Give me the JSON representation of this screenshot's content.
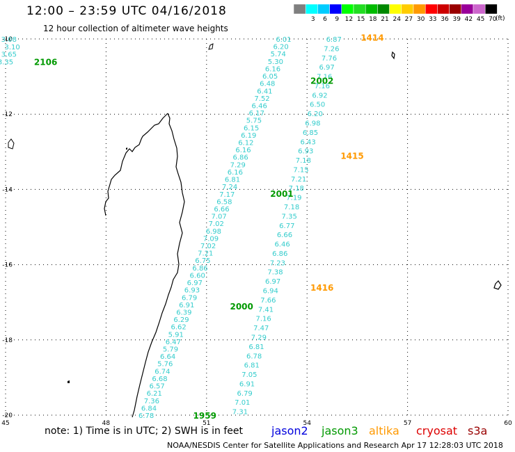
{
  "header": {
    "title": "12:00 – 23:59 UTC 04/16/2018",
    "subtitle": "12 hour collection of altimeter wave heights"
  },
  "color_scale": {
    "units": "(ft)",
    "bins": [
      {
        "label": "",
        "color": "#7f7f7f"
      },
      {
        "label": "3",
        "color": "#00ffff"
      },
      {
        "label": "6",
        "color": "#00ccff"
      },
      {
        "label": "9",
        "color": "#0000ff"
      },
      {
        "label": "12",
        "color": "#00ff00"
      },
      {
        "label": "15",
        "color": "#22dd22"
      },
      {
        "label": "18",
        "color": "#00bb00"
      },
      {
        "label": "21",
        "color": "#008800"
      },
      {
        "label": "24",
        "color": "#ffff00"
      },
      {
        "label": "27",
        "color": "#ffcc00"
      },
      {
        "label": "30",
        "color": "#ff9900"
      },
      {
        "label": "33",
        "color": "#ff0000"
      },
      {
        "label": "36",
        "color": "#cc0000"
      },
      {
        "label": "39",
        "color": "#990000"
      },
      {
        "label": "42",
        "color": "#990099"
      },
      {
        "label": "45",
        "color": "#cc66cc"
      },
      {
        "label": "70",
        "color": "#000000"
      }
    ]
  },
  "map": {
    "lon_range": [
      45,
      60
    ],
    "lat_range": [
      -20,
      -10
    ],
    "lon_labels": [
      "45",
      "48",
      "51",
      "54",
      "57",
      "60"
    ],
    "lat_labels": [
      "-10",
      "-12",
      "-14",
      "-16",
      "-18",
      "-20"
    ]
  },
  "tracks": [
    {
      "id": "t2106",
      "color": "#33cccc",
      "values": [
        "3.08",
        "3.10",
        "3.65",
        "3.35"
      ],
      "points": [
        [
          45.1,
          -10.0
        ],
        [
          45.2,
          -10.2
        ],
        [
          45.1,
          -10.4
        ],
        [
          45.0,
          -10.6
        ]
      ]
    },
    {
      "id": "t2002",
      "color": "#33cccc",
      "values": [
        "6.01",
        "6.20",
        "5.74",
        "5.30",
        "6.16",
        "6.05",
        "6.48",
        "6.41",
        "7.52",
        "6.46",
        "6.17",
        "5.75",
        "6.15",
        "6.19",
        "6.12",
        "6.16",
        "6.86",
        "7.29",
        "6.16",
        "6.81",
        "7.24",
        "7.17",
        "6.58",
        "6.66",
        "7.07",
        "7.02",
        "6.98",
        "7.09",
        "7.02",
        "7.21",
        "6.75",
        "6.86",
        "6.60",
        "6.97",
        "6.93",
        "6.79",
        "6.91",
        "6.39",
        "6.29",
        "6.62",
        "5.91",
        "6.47",
        "5.79",
        "6.64",
        "5.76",
        "6.74",
        "6.68",
        "6.57",
        "6.21",
        "7.36",
        "6.84",
        "6.78"
      ],
      "points": [
        [
          53.3,
          -10.0
        ],
        [
          49.2,
          -20.0
        ]
      ]
    },
    {
      "id": "t1415",
      "color": "#33cccc",
      "values": [
        "6.87",
        "7.26",
        "7.76",
        "6.97",
        "7.16",
        "7.16",
        "6.92",
        "6.50",
        "6.20",
        "6.98",
        "6.85",
        "6.43",
        "6.93",
        "7.18",
        "7.15",
        "7.21",
        "7.18",
        "7.19",
        "7.18",
        "7.35",
        "6.77",
        "6.66",
        "6.46",
        "6.86",
        "7.23",
        "7.38",
        "6.97",
        "6.94",
        "7.66",
        "7.41",
        "7.16",
        "7.47",
        "7.29",
        "6.81",
        "6.78",
        "6.81",
        "7.05",
        "6.91",
        "6.79",
        "7.01",
        "7.31"
      ],
      "points": [
        [
          54.8,
          -10.0
        ],
        [
          52.0,
          -19.9
        ]
      ]
    }
  ],
  "time_labels": [
    {
      "text": "2106",
      "color": "#009900",
      "lon": 45.85,
      "lat": -10.6
    },
    {
      "text": "1414",
      "color": "#ff9900",
      "lon": 55.6,
      "lat": -9.95
    },
    {
      "text": "2002",
      "color": "#009900",
      "lon": 54.1,
      "lat": -11.1
    },
    {
      "text": "1415",
      "color": "#ff9900",
      "lon": 55.0,
      "lat": -13.1
    },
    {
      "text": "2001",
      "color": "#009900",
      "lon": 52.9,
      "lat": -14.1
    },
    {
      "text": "1416",
      "color": "#ff9900",
      "lon": 54.1,
      "lat": -16.6
    },
    {
      "text": "2000",
      "color": "#009900",
      "lon": 51.7,
      "lat": -17.1
    },
    {
      "text": "1959",
      "color": "#009900",
      "lon": 50.6,
      "lat": -20.0
    }
  ],
  "footer": {
    "note": "note:  1) Time is in UTC;  2) SWH is in feet",
    "legend": [
      {
        "name": "jason2",
        "color": "#0000dd"
      },
      {
        "name": "jason3",
        "color": "#009900"
      },
      {
        "name": "altika",
        "color": "#ff9900"
      },
      {
        "name": "cryosat",
        "color": "#dd0000"
      },
      {
        "name": "s3a",
        "color": "#990000"
      }
    ],
    "credit": "NOAA/NESDIS Center for Satellite Applications and Research     Apr 17 12:28:03 UTC 2018"
  }
}
